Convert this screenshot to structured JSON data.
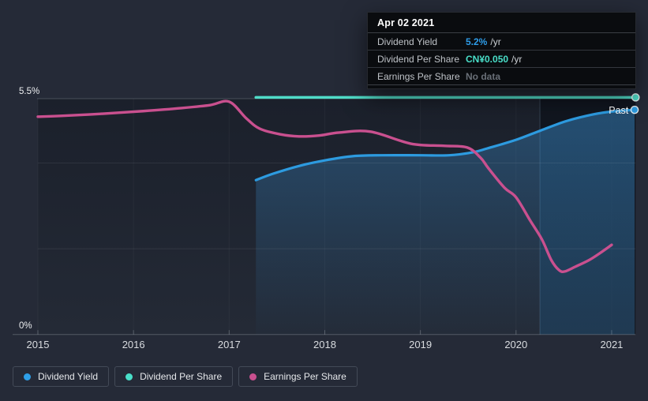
{
  "tooltip": {
    "date": "Apr 02 2021",
    "rows": [
      {
        "label": "Dividend Yield",
        "value": "5.2%",
        "unit": "/yr",
        "color": "#2e9ce8"
      },
      {
        "label": "Dividend Per Share",
        "value": "CN¥0.050",
        "unit": "/yr",
        "color": "#49dfc9"
      },
      {
        "label": "Earnings Per Share",
        "value": "No data",
        "unit": "",
        "color": "#696f77"
      }
    ]
  },
  "legend": {
    "items": [
      {
        "label": "Dividend Yield",
        "color": "#2e9fe8"
      },
      {
        "label": "Dividend Per Share",
        "color": "#49dfc9"
      },
      {
        "label": "Earnings Per Share",
        "color": "#c9508f"
      }
    ]
  },
  "chart_data": {
    "type": "line",
    "past_label": "Past",
    "xlim": [
      2015,
      2021.25
    ],
    "ylim": [
      0,
      5.5
    ],
    "x_ticks": [
      2015,
      2016,
      2017,
      2018,
      2019,
      2020,
      2021
    ],
    "y_axis_labels": {
      "top": "5.5%",
      "bottom": "0%"
    },
    "y_gridlines": [
      2,
      4
    ],
    "past_band_x": [
      2020.25,
      2021.25
    ],
    "grid": true,
    "legend_position": "bottom-left",
    "series": [
      {
        "name": "Dividend Yield",
        "color": "#2d9be0",
        "area_fill": true,
        "end_dot": true,
        "units": "percent",
        "points": [
          [
            2017.28,
            3.6
          ],
          [
            2017.46,
            3.75
          ],
          [
            2017.73,
            3.93
          ],
          [
            2018.0,
            4.06
          ],
          [
            2018.3,
            4.16
          ],
          [
            2018.6,
            4.18
          ],
          [
            2019.0,
            4.18
          ],
          [
            2019.3,
            4.18
          ],
          [
            2019.55,
            4.25
          ],
          [
            2019.7,
            4.34
          ],
          [
            2020.0,
            4.54
          ],
          [
            2020.26,
            4.76
          ],
          [
            2020.53,
            4.98
          ],
          [
            2020.8,
            5.13
          ],
          [
            2021.0,
            5.2
          ],
          [
            2021.24,
            5.24
          ]
        ]
      },
      {
        "name": "Dividend Per Share",
        "color": "#50dcc8",
        "area_fill": false,
        "end_dot": true,
        "units": "CN¥ per share (hidden axis, constant CN¥0.050)",
        "points": [
          [
            2017.28,
            5.53
          ],
          [
            2021.25,
            5.53
          ]
        ]
      },
      {
        "name": "Earnings Per Share",
        "color": "#c9508f",
        "area_fill": false,
        "end_dot": false,
        "units": "hidden EPS axis (shape read in left-axis percent equivalents)",
        "points": [
          [
            2015.0,
            5.08
          ],
          [
            2015.26,
            5.1
          ],
          [
            2015.68,
            5.15
          ],
          [
            2016.1,
            5.21
          ],
          [
            2016.5,
            5.28
          ],
          [
            2016.8,
            5.35
          ],
          [
            2017.0,
            5.43
          ],
          [
            2017.18,
            5.04
          ],
          [
            2017.32,
            4.8
          ],
          [
            2017.53,
            4.67
          ],
          [
            2017.73,
            4.62
          ],
          [
            2017.94,
            4.64
          ],
          [
            2018.15,
            4.71
          ],
          [
            2018.48,
            4.73
          ],
          [
            2018.9,
            4.45
          ],
          [
            2019.24,
            4.4
          ],
          [
            2019.49,
            4.36
          ],
          [
            2019.63,
            4.12
          ],
          [
            2019.71,
            3.88
          ],
          [
            2019.88,
            3.42
          ],
          [
            2020.0,
            3.2
          ],
          [
            2020.15,
            2.65
          ],
          [
            2020.27,
            2.22
          ],
          [
            2020.37,
            1.73
          ],
          [
            2020.45,
            1.5
          ],
          [
            2020.51,
            1.47
          ],
          [
            2020.62,
            1.58
          ],
          [
            2020.76,
            1.73
          ],
          [
            2020.86,
            1.87
          ],
          [
            2021.0,
            2.09
          ]
        ]
      }
    ]
  }
}
